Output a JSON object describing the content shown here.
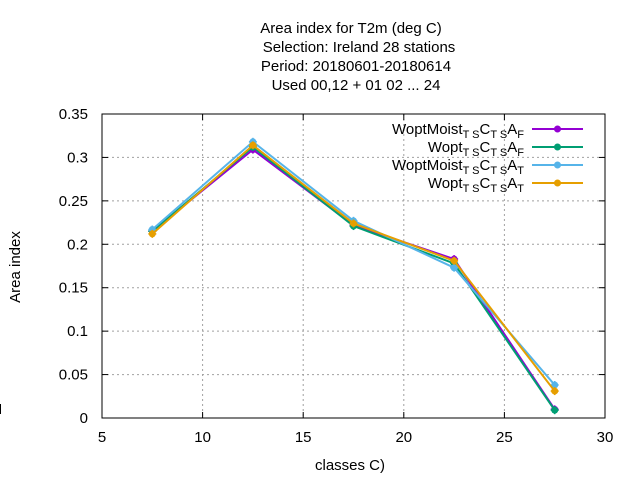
{
  "chart_data": {
    "type": "line",
    "title_lines": [
      "Area index  for T2m (deg C)",
      "Selection: Ireland      28 stations",
      "Period: 20180601-20180614",
      "Used  00,12  + 01 02 ... 24"
    ],
    "xlabel": "classes C)",
    "ylabel": "Area index",
    "xlim": [
      5,
      30
    ],
    "ylim": [
      0,
      0.35
    ],
    "xticks": [
      5,
      10,
      15,
      20,
      25,
      30
    ],
    "yticks": [
      0,
      0.05,
      0.1,
      0.15,
      0.2,
      0.25,
      0.3,
      0.35
    ],
    "xtick_labels": [
      "5",
      "10",
      "15",
      "20",
      "25",
      "30"
    ],
    "ytick_labels": [
      "0",
      "0.05",
      "0.1",
      "0.15",
      "0.2",
      "0.25",
      "0.3",
      "0.35"
    ],
    "grid": true,
    "legend_position": "top-right",
    "x": [
      7.5,
      12.5,
      17.5,
      22.5,
      27.5
    ],
    "series": [
      {
        "legend": {
          "main": "WoptMoist",
          "parts": [
            {
              "sub": "T S"
            },
            {
              "text": "C"
            },
            {
              "sub": "T S"
            },
            {
              "text": "A"
            },
            {
              "sub": "F"
            }
          ]
        },
        "color": "#9400d3",
        "values": [
          0.215,
          0.309,
          0.222,
          0.183,
          0.01
        ]
      },
      {
        "legend": {
          "main": "Wopt",
          "parts": [
            {
              "sub": "T S"
            },
            {
              "text": "C"
            },
            {
              "sub": "T S"
            },
            {
              "text": "A"
            },
            {
              "sub": "F"
            }
          ]
        },
        "color": "#009e73",
        "values": [
          0.215,
          0.312,
          0.221,
          0.178,
          0.009
        ]
      },
      {
        "legend": {
          "main": "WoptMoist",
          "parts": [
            {
              "sub": "T S"
            },
            {
              "text": "C"
            },
            {
              "sub": "T S"
            },
            {
              "text": "A"
            },
            {
              "sub": "T"
            }
          ]
        },
        "color": "#56b4e9",
        "values": [
          0.217,
          0.318,
          0.227,
          0.173,
          0.038
        ]
      },
      {
        "legend": {
          "main": "Wopt",
          "parts": [
            {
              "sub": "T S"
            },
            {
              "text": "C"
            },
            {
              "sub": "T S"
            },
            {
              "text": "A"
            },
            {
              "sub": "T"
            }
          ]
        },
        "color": "#e69f00",
        "values": [
          0.212,
          0.314,
          0.224,
          0.181,
          0.031
        ]
      }
    ]
  }
}
